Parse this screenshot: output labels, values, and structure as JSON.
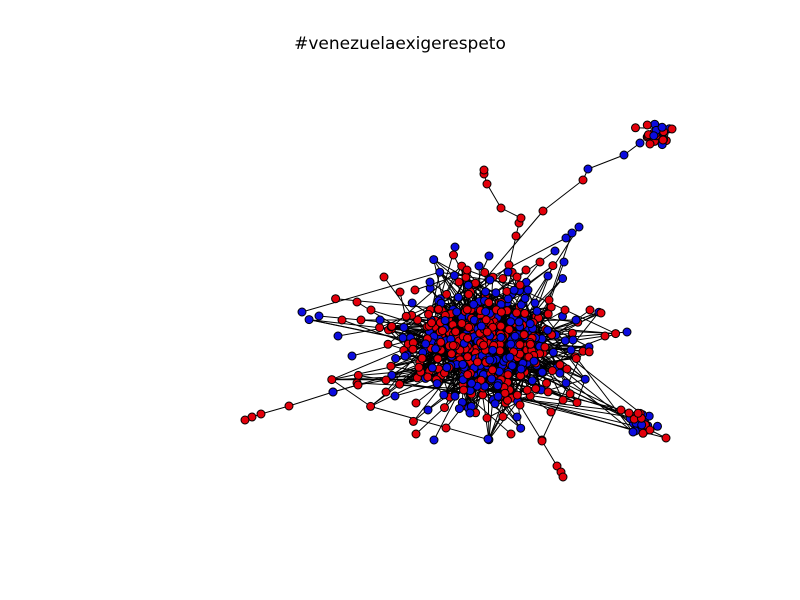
{
  "figure": {
    "title": "#venezuelaexigerespeto"
  },
  "graph": {
    "type": "network",
    "node_colors": {
      "red": "#e3000b",
      "blue": "#0b0bdf"
    },
    "node_edge_color": "#000000",
    "edge_color": "#000000"
  }
}
